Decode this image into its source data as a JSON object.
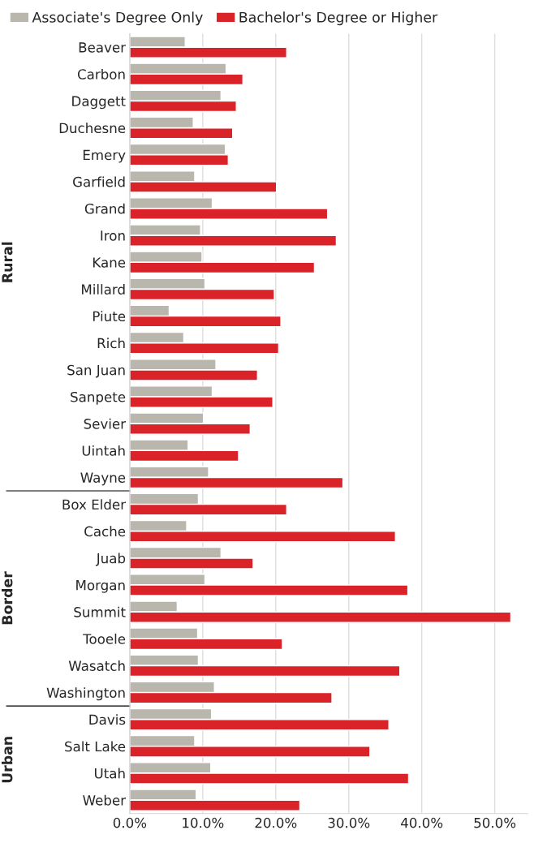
{
  "chart_data": {
    "type": "bar",
    "orientation": "horizontal",
    "categories": [
      "Beaver",
      "Carbon",
      "Daggett",
      "Duchesne",
      "Emery",
      "Garfield",
      "Grand",
      "Iron",
      "Kane",
      "Millard",
      "Piute",
      "Rich",
      "San Juan",
      "Sanpete",
      "Sevier",
      "Uintah",
      "Wayne",
      "Box Elder",
      "Cache",
      "Juab",
      "Morgan",
      "Summit",
      "Tooele",
      "Wasatch",
      "Washington",
      "Davis",
      "Salt Lake",
      "Utah",
      "Weber"
    ],
    "series": [
      {
        "name": "Associate's Degree Only",
        "color": "#b9b6ad",
        "values": [
          7.6,
          13.2,
          12.5,
          8.7,
          13.1,
          8.9,
          11.3,
          9.7,
          9.9,
          10.3,
          5.4,
          7.4,
          11.8,
          11.3,
          10.1,
          8.0,
          10.8,
          9.4,
          7.8,
          12.5,
          10.3,
          6.5,
          9.3,
          9.4,
          11.6,
          11.2,
          8.9,
          11.1,
          9.1
        ]
      },
      {
        "name": "Bachelor's Degree or Higher",
        "color": "#da2229",
        "values": [
          21.5,
          15.5,
          14.6,
          14.1,
          13.5,
          20.1,
          27.1,
          28.3,
          25.3,
          19.8,
          20.7,
          20.4,
          17.5,
          19.6,
          16.5,
          14.9,
          29.2,
          21.5,
          36.4,
          16.9,
          38.1,
          52.2,
          20.9,
          37.0,
          27.7,
          35.5,
          32.9,
          38.2,
          23.3
        ]
      }
    ],
    "xlim": [
      0,
      54.5
    ],
    "xticks": [
      {
        "value": 0,
        "label": "0.0%"
      },
      {
        "value": 10,
        "label": "10.0%"
      },
      {
        "value": 20,
        "label": "20.0%"
      },
      {
        "value": 30,
        "label": "30.0%"
      },
      {
        "value": 40,
        "label": "40.0%"
      },
      {
        "value": 50,
        "label": "50.0%"
      }
    ],
    "annotations": [
      "Rural",
      "Border",
      "Urban"
    ],
    "grid": "x",
    "legend": "top left"
  }
}
